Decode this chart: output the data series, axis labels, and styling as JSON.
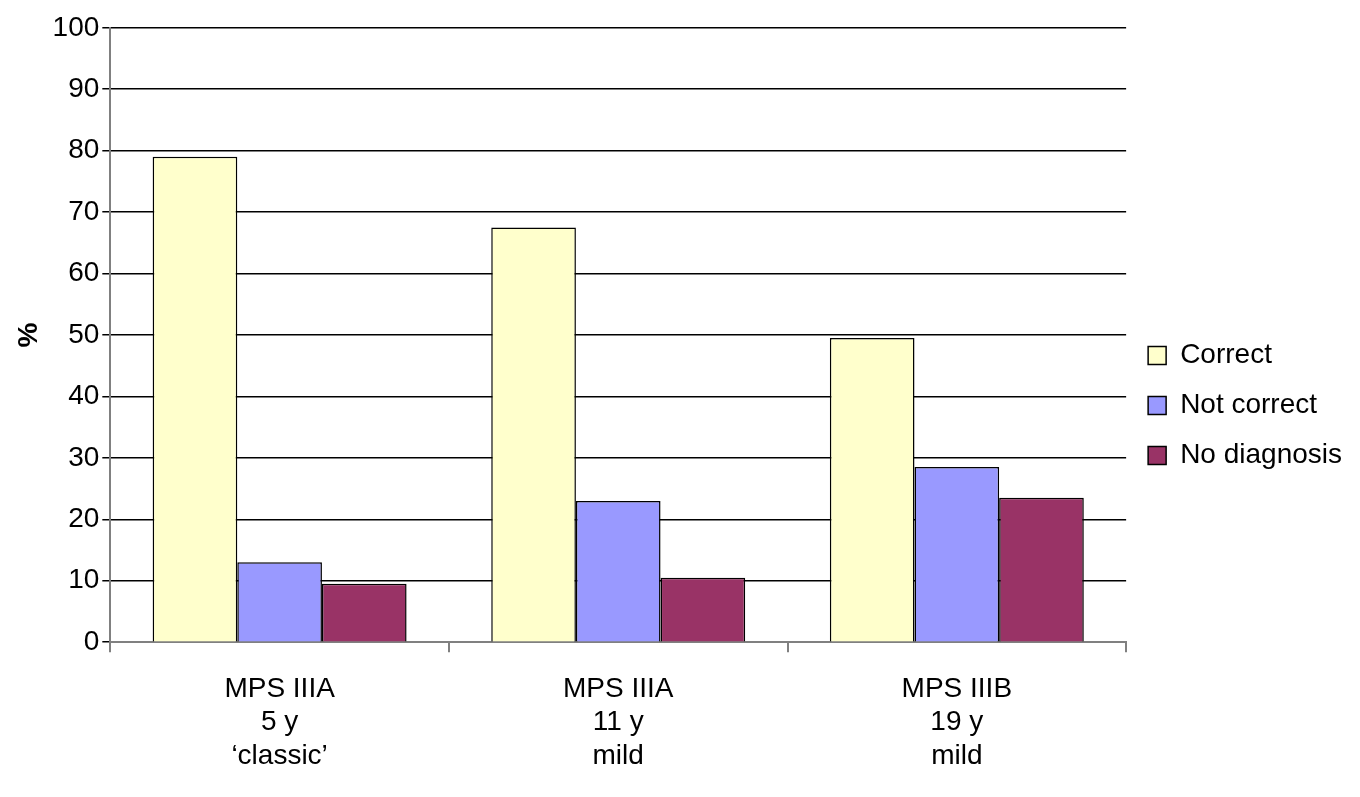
{
  "chart_data": {
    "type": "bar",
    "ylabel": "%",
    "categories": [
      "MPS IIIA\n5 y\n‘classic’",
      "MPS IIIA\n11 y\nmild",
      "MPS IIIB\n19 y\nmild"
    ],
    "series": [
      {
        "name": "Correct",
        "color": "#ffffcc",
        "values": [
          79,
          67.5,
          49.5
        ]
      },
      {
        "name": "Not correct",
        "color": "#9999ff",
        "values": [
          13,
          23,
          28.5
        ]
      },
      {
        "name": "No diagnosis",
        "color": "#993366",
        "values": [
          9.5,
          10.5,
          23.5
        ]
      }
    ],
    "ylim": [
      0,
      100
    ],
    "yticks": [
      0,
      10,
      20,
      30,
      40,
      50,
      60,
      70,
      80,
      90,
      100
    ],
    "grid": "y",
    "legend": "right"
  }
}
